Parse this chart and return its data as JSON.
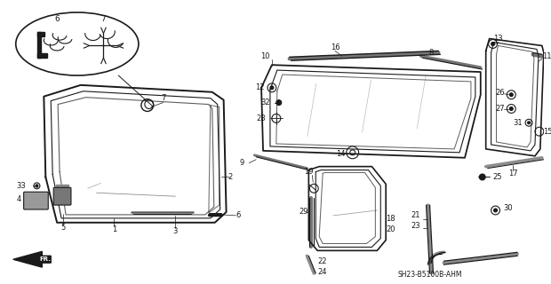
{
  "bg_color": "#ffffff",
  "line_color": "#1a1a1a",
  "title_code": "SH23-B5100B-AHM",
  "figsize": [
    6.2,
    3.2
  ],
  "dpi": 100
}
